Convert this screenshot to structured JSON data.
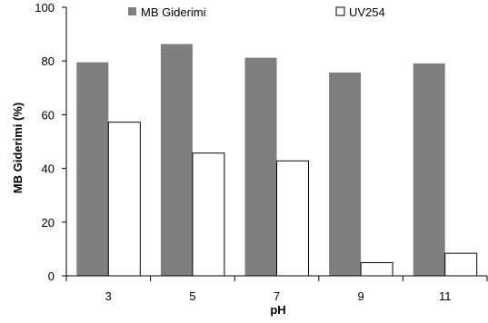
{
  "chart_data": {
    "type": "bar",
    "title": "",
    "xlabel": "pH",
    "ylabel": "MB Giderimi (%)",
    "categories": [
      "3",
      "5",
      "7",
      "9",
      "11"
    ],
    "ylim": [
      0,
      100
    ],
    "yticks": [
      "0",
      "20",
      "40",
      "60",
      "80",
      "100"
    ],
    "grid": false,
    "legend_position": "top",
    "series": [
      {
        "name": "MB Giderimi",
        "color": "#7f7f7f",
        "values": [
          79.5,
          86.3,
          81.2,
          75.7,
          79.1
        ]
      },
      {
        "name": "UV254",
        "color": "#ffffff",
        "values": [
          57.2,
          45.7,
          42.8,
          4.9,
          8.4
        ]
      }
    ]
  }
}
